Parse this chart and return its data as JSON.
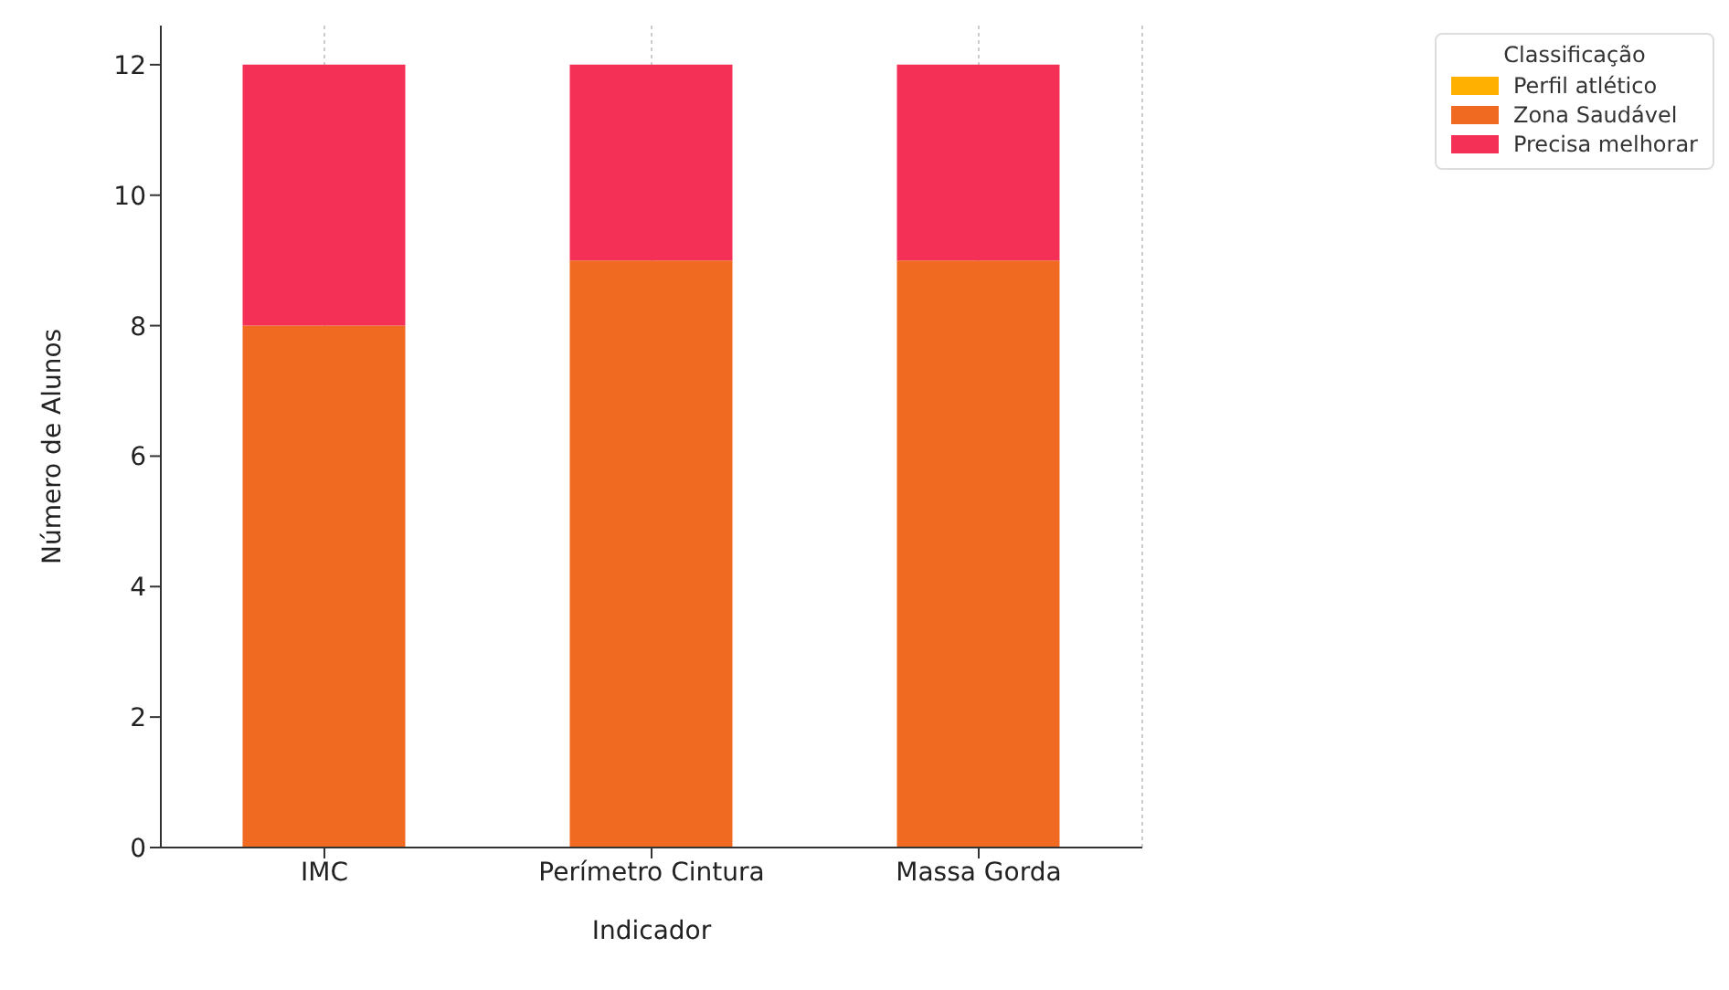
{
  "chart_data": {
    "type": "bar",
    "stacked": true,
    "categories": [
      "IMC",
      "Perímetro Cintura",
      "Massa Gorda"
    ],
    "series": [
      {
        "name": "Perfil atlético",
        "color": "#ffb000",
        "values": [
          0,
          0,
          0
        ]
      },
      {
        "name": "Zona Saudável",
        "color": "#f06a22",
        "values": [
          8,
          9,
          9
        ]
      },
      {
        "name": "Precisa melhorar",
        "color": "#f53057",
        "values": [
          4,
          3,
          3
        ]
      }
    ],
    "xlabel": "Indicador",
    "ylabel": "Número de Alunos",
    "legend_title": "Classificação",
    "legend": "top right",
    "ylim": [
      0,
      12.6
    ],
    "yticks": [
      0,
      2,
      4,
      6,
      8,
      10,
      12
    ],
    "grid": "x"
  }
}
